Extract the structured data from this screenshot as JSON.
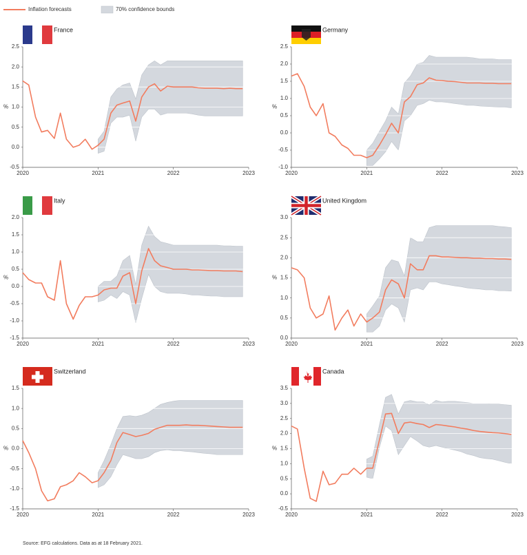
{
  "legend": [
    {
      "label": "Inflation forecasts",
      "color": "#f27c5e"
    },
    {
      "label": "70% confidence bounds",
      "color": "#d4d8de"
    }
  ],
  "source": "Source: EFG calculations. Data as at 18 February 2021.",
  "chart_data": [
    {
      "type": "line",
      "title": "France",
      "ylabel": "%",
      "x": [
        2020,
        2020.08,
        2020.17,
        2020.25,
        2020.33,
        2020.42,
        2020.5,
        2020.58,
        2020.67,
        2020.75,
        2020.83,
        2020.92,
        2021,
        2021.08,
        2021.17,
        2021.25,
        2021.33,
        2021.42,
        2021.5,
        2021.58,
        2021.67,
        2021.75,
        2021.83,
        2021.92,
        2022,
        2022.08,
        2022.17,
        2022.25,
        2022.33,
        2022.42,
        2022.5,
        2022.58,
        2022.67,
        2022.75,
        2022.83,
        2022.92
      ],
      "values": [
        1.65,
        1.55,
        0.75,
        0.38,
        0.42,
        0.22,
        0.85,
        0.2,
        0.0,
        0.05,
        0.2,
        -0.05,
        0.05,
        0.2,
        0.85,
        1.05,
        1.1,
        1.15,
        0.65,
        1.25,
        1.5,
        1.58,
        1.4,
        1.52,
        1.5,
        1.5,
        1.5,
        1.5,
        1.48,
        1.47,
        1.47,
        1.47,
        1.46,
        1.47,
        1.46,
        1.46
      ],
      "band": {
        "x": [
          2021,
          2021.08,
          2021.17,
          2021.25,
          2021.33,
          2021.42,
          2021.5,
          2021.58,
          2021.67,
          2021.75,
          2021.83,
          2021.92,
          2022,
          2022.08,
          2022.17,
          2022.25,
          2022.33,
          2022.42,
          2022.5,
          2022.58,
          2022.67,
          2022.75,
          2022.83,
          2022.92
        ],
        "lower": [
          -0.15,
          -0.1,
          0.6,
          0.75,
          0.75,
          0.8,
          0.15,
          0.75,
          0.95,
          0.95,
          0.8,
          0.85,
          0.85,
          0.85,
          0.85,
          0.83,
          0.8,
          0.78,
          0.78,
          0.78,
          0.78,
          0.78,
          0.78,
          0.78
        ],
        "upper": [
          0.2,
          0.4,
          1.25,
          1.45,
          1.55,
          1.6,
          1.2,
          1.8,
          2.05,
          2.15,
          2.05,
          2.15,
          2.15,
          2.15,
          2.15,
          2.15,
          2.15,
          2.15,
          2.15,
          2.15,
          2.15,
          2.15,
          2.15,
          2.15
        ]
      },
      "xlim": [
        2020,
        2023
      ],
      "ylim": [
        -0.5,
        2.5
      ],
      "xticks": [
        2020,
        2021,
        2022,
        2023
      ],
      "yticks": [
        -0.5,
        {
          "value": 0,
          "label": "0.0"
        },
        0.5,
        {
          "value": 1,
          "label": "1.0"
        },
        1.5,
        {
          "value": 2,
          "label": "2.0"
        },
        2.5
      ]
    },
    {
      "type": "line",
      "title": "Germany",
      "ylabel": "%",
      "x": [
        2020,
        2020.08,
        2020.17,
        2020.25,
        2020.33,
        2020.42,
        2020.5,
        2020.58,
        2020.67,
        2020.75,
        2020.83,
        2020.92,
        2021,
        2021.08,
        2021.17,
        2021.25,
        2021.33,
        2021.42,
        2021.5,
        2021.58,
        2021.67,
        2021.75,
        2021.83,
        2021.92,
        2022,
        2022.08,
        2022.17,
        2022.25,
        2022.33,
        2022.42,
        2022.5,
        2022.58,
        2022.67,
        2022.75,
        2022.83,
        2022.92
      ],
      "values": [
        1.65,
        1.72,
        1.35,
        0.75,
        0.5,
        0.85,
        0.0,
        -0.1,
        -0.35,
        -0.45,
        -0.65,
        -0.65,
        -0.72,
        -0.65,
        -0.35,
        -0.05,
        0.28,
        0.0,
        0.9,
        1.05,
        1.4,
        1.45,
        1.6,
        1.53,
        1.52,
        1.5,
        1.49,
        1.47,
        1.45,
        1.45,
        1.45,
        1.44,
        1.44,
        1.43,
        1.43,
        1.43
      ],
      "band": {
        "x": [
          2021,
          2021.08,
          2021.17,
          2021.25,
          2021.33,
          2021.42,
          2021.5,
          2021.58,
          2021.67,
          2021.75,
          2021.83,
          2021.92,
          2022,
          2022.08,
          2022.17,
          2022.25,
          2022.33,
          2022.42,
          2022.5,
          2022.58,
          2022.67,
          2022.75,
          2022.83,
          2022.92
        ],
        "lower": [
          -0.95,
          -0.95,
          -0.75,
          -0.55,
          -0.25,
          -0.5,
          0.35,
          0.5,
          0.8,
          0.85,
          0.95,
          0.9,
          0.9,
          0.88,
          0.85,
          0.83,
          0.8,
          0.8,
          0.78,
          0.77,
          0.76,
          0.75,
          0.75,
          0.73
        ],
        "upper": [
          -0.5,
          -0.3,
          0.05,
          0.35,
          0.75,
          0.55,
          1.45,
          1.65,
          2.0,
          2.05,
          2.25,
          2.2,
          2.2,
          2.2,
          2.2,
          2.2,
          2.2,
          2.18,
          2.15,
          2.15,
          2.15,
          2.13,
          2.13,
          2.13
        ]
      },
      "xlim": [
        2020,
        2023
      ],
      "ylim": [
        -1,
        2.5
      ],
      "xticks": [
        2020,
        2021,
        2022,
        2023
      ],
      "yticks": [
        {
          "value": -1,
          "label": "-1.0"
        },
        -0.5,
        {
          "value": 0,
          "label": "0.0"
        },
        0.5,
        {
          "value": 1,
          "label": "1.0"
        },
        1.5,
        {
          "value": 2,
          "label": "2.0"
        },
        2.5
      ]
    },
    {
      "type": "line",
      "title": "Italy",
      "ylabel": "%",
      "x": [
        2020,
        2020.08,
        2020.17,
        2020.25,
        2020.33,
        2020.42,
        2020.5,
        2020.58,
        2020.67,
        2020.75,
        2020.83,
        2020.92,
        2021,
        2021.08,
        2021.17,
        2021.25,
        2021.33,
        2021.42,
        2021.5,
        2021.58,
        2021.67,
        2021.75,
        2021.83,
        2021.92,
        2022,
        2022.08,
        2022.17,
        2022.25,
        2022.33,
        2022.42,
        2022.5,
        2022.58,
        2022.67,
        2022.75,
        2022.83,
        2022.92
      ],
      "values": [
        0.4,
        0.2,
        0.1,
        0.1,
        -0.3,
        -0.4,
        0.75,
        -0.5,
        -0.95,
        -0.55,
        -0.3,
        -0.3,
        -0.25,
        -0.1,
        -0.05,
        -0.05,
        0.3,
        0.4,
        -0.5,
        0.45,
        1.1,
        0.75,
        0.6,
        0.55,
        0.5,
        0.5,
        0.5,
        0.48,
        0.48,
        0.47,
        0.46,
        0.46,
        0.45,
        0.45,
        0.45,
        0.43
      ],
      "band": {
        "x": [
          2021,
          2021.08,
          2021.17,
          2021.25,
          2021.33,
          2021.42,
          2021.5,
          2021.58,
          2021.67,
          2021.75,
          2021.83,
          2021.92,
          2022,
          2022.08,
          2022.17,
          2022.25,
          2022.33,
          2022.42,
          2022.5,
          2022.58,
          2022.67,
          2022.75,
          2022.83,
          2022.92
        ],
        "lower": [
          -0.45,
          -0.4,
          -0.25,
          -0.35,
          -0.15,
          -0.25,
          -1.05,
          -0.35,
          0.35,
          0.0,
          -0.15,
          -0.2,
          -0.2,
          -0.2,
          -0.22,
          -0.25,
          -0.25,
          -0.27,
          -0.28,
          -0.28,
          -0.3,
          -0.3,
          -0.3,
          -0.3
        ],
        "upper": [
          0.0,
          0.15,
          0.15,
          0.3,
          0.75,
          0.9,
          0.05,
          1.2,
          1.75,
          1.45,
          1.3,
          1.25,
          1.2,
          1.2,
          1.2,
          1.2,
          1.2,
          1.2,
          1.2,
          1.2,
          1.18,
          1.18,
          1.17,
          1.17
        ]
      },
      "xlim": [
        2020,
        2023
      ],
      "ylim": [
        -1.5,
        2
      ],
      "xticks": [
        2020,
        2021,
        2022,
        2023
      ],
      "yticks": [
        -1.5,
        {
          "value": -1,
          "label": "-1.0"
        },
        -0.5,
        {
          "value": 0,
          "label": "0.0"
        },
        0.5,
        {
          "value": 1,
          "label": "1.0"
        },
        1.5,
        {
          "value": 2,
          "label": "2.0"
        }
      ]
    },
    {
      "type": "line",
      "title": "United Kingdom",
      "ylabel": "%",
      "x": [
        2020,
        2020.08,
        2020.17,
        2020.25,
        2020.33,
        2020.42,
        2020.5,
        2020.58,
        2020.67,
        2020.75,
        2020.83,
        2020.92,
        2021,
        2021.08,
        2021.17,
        2021.25,
        2021.33,
        2021.42,
        2021.5,
        2021.58,
        2021.67,
        2021.75,
        2021.83,
        2021.92,
        2022,
        2022.08,
        2022.17,
        2022.25,
        2022.33,
        2022.42,
        2022.5,
        2022.58,
        2022.67,
        2022.75,
        2022.83,
        2022.92
      ],
      "values": [
        1.75,
        1.7,
        1.5,
        0.75,
        0.5,
        0.6,
        1.05,
        0.2,
        0.5,
        0.7,
        0.3,
        0.6,
        0.4,
        0.5,
        0.65,
        1.2,
        1.45,
        1.35,
        1.0,
        1.85,
        1.7,
        1.7,
        2.05,
        2.05,
        2.02,
        2.02,
        2.01,
        2.0,
        2.0,
        1.99,
        1.99,
        1.98,
        1.98,
        1.97,
        1.97,
        1.96
      ],
      "band": {
        "x": [
          2021,
          2021.08,
          2021.17,
          2021.25,
          2021.33,
          2021.42,
          2021.5,
          2021.58,
          2021.67,
          2021.75,
          2021.83,
          2021.92,
          2022,
          2022.08,
          2022.17,
          2022.25,
          2022.33,
          2022.42,
          2022.5,
          2022.58,
          2022.67,
          2022.75,
          2022.83,
          2022.92
        ],
        "lower": [
          0.15,
          0.15,
          0.3,
          0.7,
          0.85,
          0.75,
          0.4,
          1.2,
          1.25,
          1.2,
          1.4,
          1.4,
          1.35,
          1.33,
          1.3,
          1.28,
          1.25,
          1.23,
          1.22,
          1.2,
          1.2,
          1.18,
          1.18,
          1.17
        ],
        "upper": [
          0.6,
          0.8,
          1.05,
          1.75,
          1.95,
          1.9,
          1.55,
          2.5,
          2.4,
          2.4,
          2.75,
          2.8,
          2.8,
          2.8,
          2.8,
          2.8,
          2.8,
          2.8,
          2.8,
          2.8,
          2.8,
          2.78,
          2.77,
          2.75
        ]
      },
      "xlim": [
        2020,
        2023
      ],
      "ylim": [
        0,
        3
      ],
      "xticks": [
        2020,
        2021,
        2022,
        2023
      ],
      "yticks": [
        {
          "value": 0,
          "label": "0.0"
        },
        0.5,
        {
          "value": 1,
          "label": "1.0"
        },
        1.5,
        {
          "value": 2,
          "label": "2.0"
        },
        2.5,
        {
          "value": 3,
          "label": "3.0"
        }
      ]
    },
    {
      "type": "line",
      "title": "Switzerland",
      "ylabel": "%",
      "x": [
        2020,
        2020.08,
        2020.17,
        2020.25,
        2020.33,
        2020.42,
        2020.5,
        2020.58,
        2020.67,
        2020.75,
        2020.83,
        2020.92,
        2021,
        2021.08,
        2021.17,
        2021.25,
        2021.33,
        2021.42,
        2021.5,
        2021.58,
        2021.67,
        2021.75,
        2021.83,
        2021.92,
        2022,
        2022.08,
        2022.17,
        2022.25,
        2022.33,
        2022.42,
        2022.5,
        2022.58,
        2022.67,
        2022.75,
        2022.83,
        2022.92
      ],
      "values": [
        0.2,
        -0.1,
        -0.5,
        -1.05,
        -1.3,
        -1.25,
        -0.95,
        -0.9,
        -0.8,
        -0.6,
        -0.7,
        -0.85,
        -0.8,
        -0.6,
        -0.3,
        0.15,
        0.4,
        0.35,
        0.3,
        0.33,
        0.38,
        0.48,
        0.53,
        0.58,
        0.58,
        0.58,
        0.59,
        0.58,
        0.58,
        0.57,
        0.56,
        0.55,
        0.54,
        0.53,
        0.53,
        0.53
      ],
      "band": {
        "x": [
          2021,
          2021.08,
          2021.17,
          2021.25,
          2021.33,
          2021.42,
          2021.5,
          2021.58,
          2021.67,
          2021.75,
          2021.83,
          2021.92,
          2022,
          2022.08,
          2022.17,
          2022.25,
          2022.33,
          2022.42,
          2022.5,
          2022.58,
          2022.67,
          2022.75,
          2022.83,
          2022.92
        ],
        "lower": [
          -0.97,
          -0.9,
          -0.7,
          -0.4,
          -0.15,
          -0.2,
          -0.25,
          -0.25,
          -0.2,
          -0.1,
          -0.05,
          -0.03,
          -0.05,
          -0.05,
          -0.07,
          -0.08,
          -0.1,
          -0.12,
          -0.13,
          -0.15,
          -0.15,
          -0.15,
          -0.15,
          -0.15
        ],
        "upper": [
          -0.6,
          -0.3,
          0.1,
          0.5,
          0.8,
          0.82,
          0.8,
          0.83,
          0.9,
          1.0,
          1.1,
          1.15,
          1.18,
          1.2,
          1.2,
          1.2,
          1.2,
          1.2,
          1.2,
          1.2,
          1.2,
          1.2,
          1.2,
          1.2
        ]
      },
      "xlim": [
        2020,
        2023
      ],
      "ylim": [
        -1.5,
        1.5
      ],
      "xticks": [
        2020,
        2021,
        2022,
        2023
      ],
      "yticks": [
        -1.5,
        {
          "value": -1,
          "label": "-1.0"
        },
        -0.5,
        {
          "value": 0,
          "label": "0.0"
        },
        0.5,
        {
          "value": 1,
          "label": "1.0"
        },
        1.5
      ]
    },
    {
      "type": "line",
      "title": "Canada",
      "ylabel": "%",
      "x": [
        2020,
        2020.08,
        2020.17,
        2020.25,
        2020.33,
        2020.42,
        2020.5,
        2020.58,
        2020.67,
        2020.75,
        2020.83,
        2020.92,
        2021,
        2021.08,
        2021.17,
        2021.25,
        2021.33,
        2021.42,
        2021.5,
        2021.58,
        2021.67,
        2021.75,
        2021.83,
        2021.92,
        2022,
        2022.08,
        2022.17,
        2022.25,
        2022.33,
        2022.42,
        2022.5,
        2022.58,
        2022.67,
        2022.75,
        2022.83,
        2022.92
      ],
      "values": [
        2.25,
        2.15,
        0.85,
        -0.15,
        -0.25,
        0.75,
        0.3,
        0.35,
        0.65,
        0.65,
        0.85,
        0.65,
        0.85,
        0.85,
        1.8,
        2.65,
        2.67,
        2.0,
        2.35,
        2.38,
        2.33,
        2.3,
        2.2,
        2.3,
        2.28,
        2.25,
        2.22,
        2.18,
        2.15,
        2.1,
        2.07,
        2.05,
        2.03,
        2.02,
        2.0,
        1.97
      ],
      "band": {
        "x": [
          2021,
          2021.08,
          2021.17,
          2021.25,
          2021.33,
          2021.42,
          2021.5,
          2021.58,
          2021.67,
          2021.75,
          2021.83,
          2021.92,
          2022,
          2022.08,
          2022.17,
          2022.25,
          2022.33,
          2022.42,
          2022.5,
          2022.58,
          2022.67,
          2022.75,
          2022.83,
          2022.92
        ],
        "lower": [
          0.55,
          0.5,
          1.55,
          2.25,
          2.1,
          1.3,
          1.6,
          1.9,
          1.75,
          1.6,
          1.55,
          1.6,
          1.55,
          1.5,
          1.45,
          1.4,
          1.32,
          1.27,
          1.2,
          1.17,
          1.15,
          1.1,
          1.05,
          1.0
        ],
        "upper": [
          1.15,
          1.25,
          2.3,
          3.2,
          3.3,
          2.65,
          3.05,
          3.1,
          3.05,
          3.05,
          2.95,
          3.1,
          3.05,
          3.07,
          3.07,
          3.05,
          3.03,
          3.0,
          3.0,
          3.0,
          2.98,
          2.98,
          2.96,
          2.94
        ]
      },
      "xlim": [
        2020,
        2023
      ],
      "ylim": [
        -0.5,
        3.5
      ],
      "xticks": [
        2020,
        2021,
        2022,
        2023
      ],
      "yticks": [
        -0.5,
        {
          "value": 0,
          "label": "0.0"
        },
        0.5,
        {
          "value": 1,
          "label": "1.0"
        },
        1.5,
        {
          "value": 2,
          "label": "2.0"
        },
        2.5,
        {
          "value": 3,
          "label": "3.0"
        },
        3.5
      ]
    }
  ]
}
